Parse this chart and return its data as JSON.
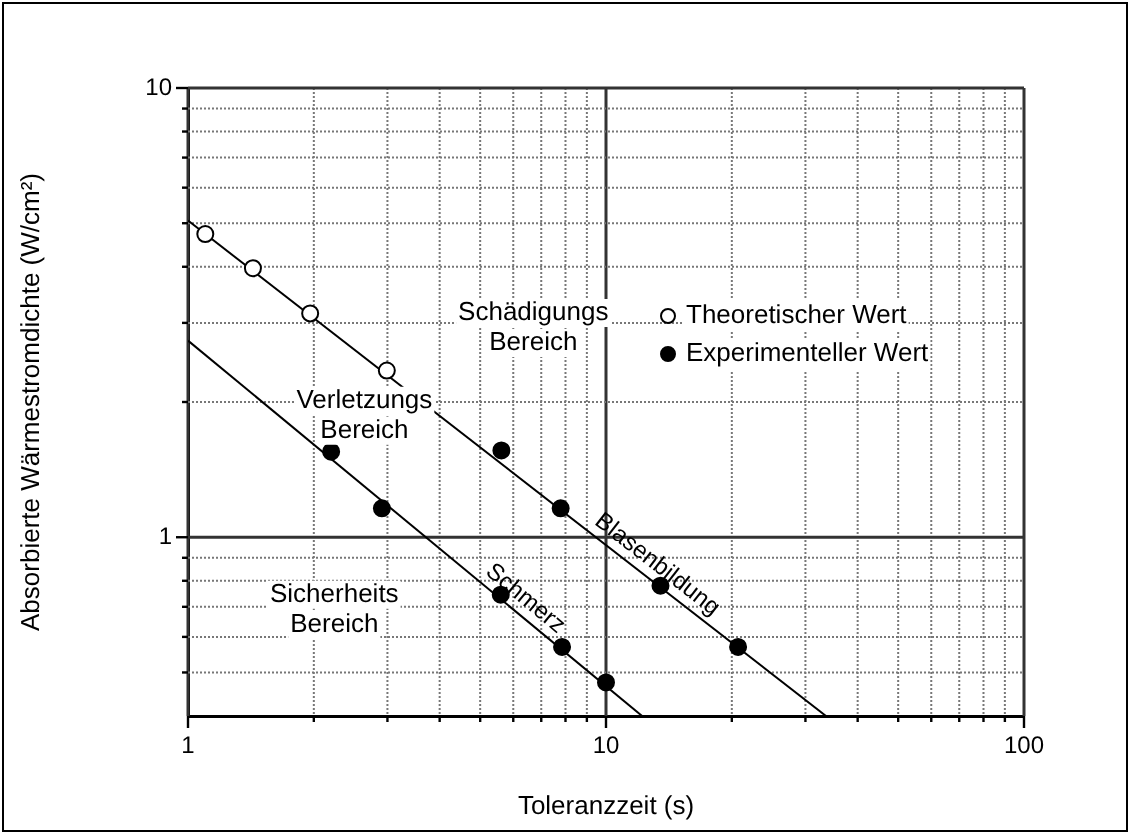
{
  "chart_data": {
    "type": "scatter",
    "xlabel": "Toleranzzeit (s)",
    "ylabel": "Absorbierte Wärmestromdichte (W/cm²)",
    "log": "xy",
    "xlim": [
      1,
      100
    ],
    "ylim": [
      0.4,
      10
    ],
    "xticks": [
      1,
      {
        "value": 2,
        "label": null
      },
      {
        "value": 3,
        "label": null
      },
      {
        "value": 4,
        "label": null
      },
      {
        "value": 5,
        "label": null
      },
      {
        "value": 6,
        "label": null
      },
      {
        "value": 7,
        "label": null
      },
      {
        "value": 8,
        "label": null
      },
      {
        "value": 9,
        "label": null
      },
      10,
      {
        "value": 20,
        "label": null
      },
      {
        "value": 30,
        "label": null
      },
      {
        "value": 40,
        "label": null
      },
      {
        "value": 50,
        "label": null
      },
      {
        "value": 60,
        "label": null
      },
      {
        "value": 70,
        "label": null
      },
      {
        "value": 80,
        "label": null
      },
      {
        "value": 90,
        "label": null
      },
      100
    ],
    "yticks": [
      {
        "value": 0.5,
        "label": null
      },
      {
        "value": 0.6,
        "label": null
      },
      {
        "value": 0.7,
        "label": null
      },
      {
        "value": 0.8,
        "label": null
      },
      {
        "value": 0.9,
        "label": null
      },
      1,
      {
        "value": 2,
        "label": null
      },
      {
        "value": 3,
        "label": null
      },
      {
        "value": 4,
        "label": null
      },
      {
        "value": 5,
        "label": null
      },
      {
        "value": 6,
        "label": null
      },
      {
        "value": 7,
        "label": null
      },
      {
        "value": 8,
        "label": null
      },
      {
        "value": 9,
        "label": null
      },
      10
    ],
    "grid": true,
    "legend": "top right",
    "series": [
      {
        "name": "Theoretischer Wert",
        "marker": "circle",
        "color": "#ffffff",
        "x": [
          1.1,
          1.43,
          1.96,
          2.99
        ],
        "values": [
          4.73,
          3.97,
          3.15,
          2.35
        ]
      },
      {
        "name": "Experimenteller Wert",
        "marker": "circle",
        "color": "#000000",
        "x": [
          2.2,
          2.91,
          5.62,
          7.79,
          5.6,
          7.85,
          10.0,
          13.5,
          20.7
        ],
        "values": [
          1.55,
          1.16,
          1.56,
          1.16,
          0.745,
          0.57,
          0.475,
          0.78,
          0.57
        ]
      },
      {
        "name": "Blasenbildung",
        "type": "line",
        "marker": "none",
        "color": "#000000",
        "x": [
          1,
          33.6
        ],
        "values": [
          5.07,
          0.4
        ]
      },
      {
        "name": "Schmerz",
        "type": "line",
        "marker": "none",
        "color": "#000000",
        "x": [
          1,
          12.2
        ],
        "values": [
          2.74,
          0.4
        ]
      }
    ],
    "annotations": [
      "Schädigungs\nBereich",
      "Verletzungs\nBereich",
      "Sicherheits\nBereich"
    ]
  }
}
